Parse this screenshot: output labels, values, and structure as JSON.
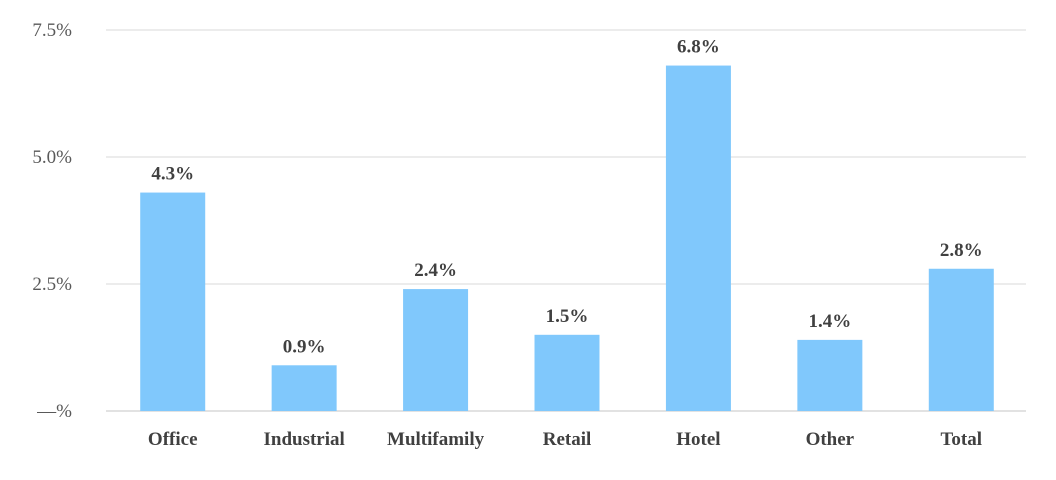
{
  "chart_data": {
    "type": "bar",
    "title": "",
    "xlabel": "",
    "ylabel": "",
    "categories": [
      "Office",
      "Industrial",
      "Multifamily",
      "Retail",
      "Hotel",
      "Other",
      "Total"
    ],
    "values": [
      4.3,
      0.9,
      2.4,
      1.5,
      6.8,
      1.4,
      2.8
    ],
    "data_labels": [
      "4.3%",
      "0.9%",
      "2.4%",
      "1.5%",
      "6.8%",
      "1.4%",
      "2.8%"
    ],
    "y_ticks": [
      0,
      2.5,
      5.0,
      7.5
    ],
    "y_tick_labels": [
      "—%",
      "2.5%",
      "5.0%",
      "7.5%"
    ],
    "ylim": [
      0,
      7.5
    ],
    "grid": true,
    "legend": "none",
    "bar_color": "#80c8fc"
  }
}
